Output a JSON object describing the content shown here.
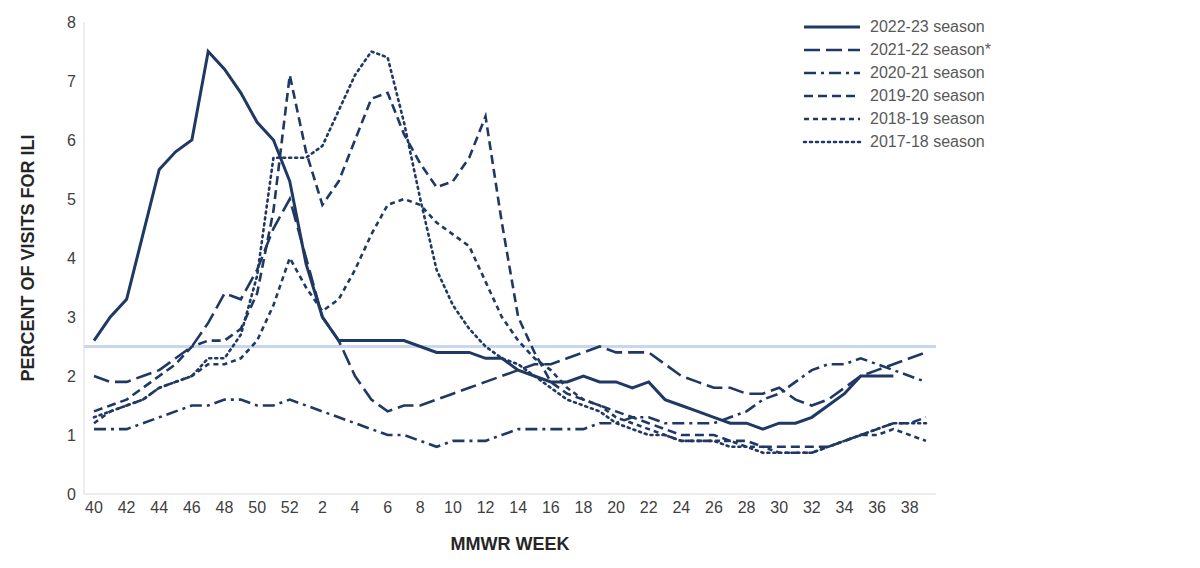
{
  "chart_data": {
    "type": "line",
    "x_label": "MMWR WEEK",
    "y_label": "PERCENT OF VISITS FOR ILI",
    "categories": [
      "40",
      null,
      "42",
      null,
      "44",
      null,
      "46",
      null,
      "48",
      null,
      "50",
      null,
      "52",
      null,
      "2",
      null,
      "4",
      null,
      "6",
      null,
      "8",
      null,
      "10",
      null,
      "12",
      null,
      "14",
      null,
      "16",
      null,
      "18",
      null,
      "20",
      null,
      "22",
      null,
      "24",
      null,
      "26",
      null,
      "28",
      null,
      "30",
      null,
      "32",
      null,
      "34",
      null,
      "36",
      null,
      "38",
      null
    ],
    "ylim": [
      0,
      8
    ],
    "yticks": [
      0,
      1,
      2,
      3,
      4,
      5,
      6,
      7,
      8
    ],
    "grid": false,
    "legend": "upper right",
    "reference_line": 2.5,
    "series": [
      {
        "name": "2022-23 season",
        "color": "#203864",
        "line_style": "solid",
        "values": [
          2.6,
          3.0,
          3.3,
          4.4,
          5.5,
          5.8,
          6.0,
          7.5,
          7.2,
          6.8,
          6.3,
          6.0,
          5.3,
          3.9,
          3.0,
          2.6,
          2.6,
          2.6,
          2.6,
          2.6,
          2.5,
          2.4,
          2.4,
          2.4,
          2.3,
          2.3,
          2.1,
          2.0,
          1.9,
          1.9,
          2.0,
          1.9,
          1.9,
          1.8,
          1.9,
          1.6,
          1.5,
          1.4,
          1.3,
          1.2,
          1.2,
          1.1,
          1.2,
          1.2,
          1.3,
          1.5,
          1.7,
          2.0,
          2.0,
          2.0,
          null,
          null
        ]
      },
      {
        "name": "2021-22 season*",
        "color": "#203864",
        "line_style": "longdash",
        "values": [
          2.0,
          1.9,
          1.9,
          2.0,
          2.1,
          2.3,
          2.5,
          2.9,
          3.4,
          3.3,
          3.8,
          4.5,
          5.0,
          4.0,
          3.0,
          2.6,
          2.0,
          1.6,
          1.4,
          1.5,
          1.5,
          1.6,
          1.7,
          1.8,
          1.9,
          2.0,
          2.1,
          2.2,
          2.2,
          2.3,
          2.4,
          2.5,
          2.4,
          2.4,
          2.4,
          2.2,
          2.0,
          1.9,
          1.8,
          1.8,
          1.7,
          1.7,
          1.8,
          1.6,
          1.5,
          1.6,
          1.8,
          2.0,
          2.1,
          2.2,
          2.3,
          2.4
        ]
      },
      {
        "name": "2020-21 season",
        "color": "#203864",
        "line_style": "dashdot",
        "values": [
          1.1,
          1.1,
          1.1,
          1.2,
          1.3,
          1.4,
          1.5,
          1.5,
          1.6,
          1.6,
          1.5,
          1.5,
          1.6,
          1.5,
          1.4,
          1.3,
          1.2,
          1.1,
          1.0,
          1.0,
          0.9,
          0.8,
          0.9,
          0.9,
          0.9,
          1.0,
          1.1,
          1.1,
          1.1,
          1.1,
          1.1,
          1.2,
          1.2,
          1.3,
          1.3,
          1.2,
          1.2,
          1.2,
          1.2,
          1.3,
          1.4,
          1.6,
          1.7,
          1.9,
          2.1,
          2.2,
          2.2,
          2.3,
          2.2,
          2.1,
          2.0,
          1.9
        ]
      },
      {
        "name": "2019-20 season",
        "color": "#203864",
        "line_style": "dash",
        "values": [
          1.4,
          1.5,
          1.6,
          1.8,
          2.0,
          2.2,
          2.5,
          2.6,
          2.6,
          2.8,
          3.4,
          4.8,
          7.1,
          5.8,
          4.9,
          5.3,
          6.0,
          6.7,
          6.8,
          6.1,
          5.6,
          5.2,
          5.3,
          5.7,
          6.4,
          4.6,
          3.0,
          2.4,
          1.9,
          1.7,
          1.6,
          1.5,
          1.4,
          1.3,
          1.2,
          1.1,
          1.0,
          1.0,
          1.0,
          0.9,
          0.9,
          0.8,
          0.8,
          0.8,
          0.8,
          0.8,
          0.9,
          1.0,
          1.1,
          1.2,
          1.2,
          1.3
        ]
      },
      {
        "name": "2018-19 season",
        "color": "#203864",
        "line_style": "shortdash",
        "values": [
          1.2,
          1.4,
          1.5,
          1.6,
          1.8,
          1.9,
          2.0,
          2.2,
          2.2,
          2.3,
          2.6,
          3.2,
          4.0,
          3.5,
          3.1,
          3.3,
          3.8,
          4.4,
          4.9,
          5.0,
          4.9,
          4.6,
          4.4,
          4.2,
          3.6,
          3.0,
          2.6,
          2.3,
          2.1,
          1.8,
          1.6,
          1.5,
          1.3,
          1.2,
          1.1,
          1.0,
          0.9,
          0.9,
          0.9,
          0.9,
          0.8,
          0.8,
          0.7,
          0.7,
          0.7,
          0.8,
          0.9,
          1.0,
          1.0,
          1.1,
          1.0,
          0.9
        ]
      },
      {
        "name": "2017-18 season",
        "color": "#203864",
        "line_style": "dot",
        "values": [
          1.3,
          1.4,
          1.5,
          1.6,
          1.8,
          1.9,
          2.0,
          2.3,
          2.3,
          2.7,
          3.7,
          5.7,
          5.7,
          5.7,
          5.9,
          6.5,
          7.1,
          7.5,
          7.4,
          6.3,
          5.0,
          3.8,
          3.2,
          2.8,
          2.5,
          2.3,
          2.2,
          2.0,
          1.8,
          1.6,
          1.5,
          1.4,
          1.2,
          1.1,
          1.0,
          1.0,
          0.9,
          0.9,
          0.9,
          0.8,
          0.8,
          0.7,
          0.7,
          0.7,
          0.7,
          0.8,
          0.9,
          1.0,
          1.1,
          1.2,
          1.2,
          1.2
        ]
      }
    ]
  }
}
